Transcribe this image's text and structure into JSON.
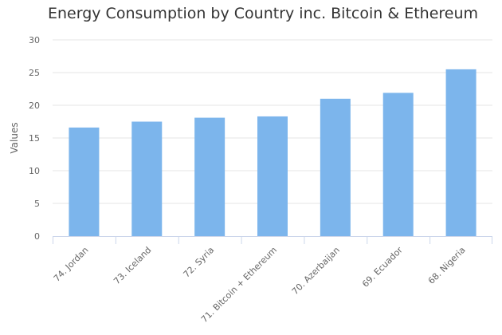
{
  "chart_data": {
    "type": "bar",
    "title": "Energy Consumption by Country inc. Bitcoin & Ethereum",
    "xlabel": "",
    "ylabel": "Values",
    "categories": [
      "74. Jordan",
      "73. Iceland",
      "72. Syria",
      "71. Bitcoin + Ethereum",
      "70. Azerbaijan",
      "69. Ecuador",
      "68. Nigeria"
    ],
    "values": [
      16.6,
      17.5,
      18.1,
      18.3,
      21.0,
      21.9,
      25.5
    ],
    "ylim": [
      0,
      30
    ],
    "yticks": [
      "0",
      "5",
      "10",
      "15",
      "20",
      "25",
      "30"
    ],
    "grid": true,
    "legend": "none",
    "colors": {
      "bar": "#7cb5ec",
      "grid": "#e6e6e6",
      "axis": "#ccd6eb"
    }
  }
}
